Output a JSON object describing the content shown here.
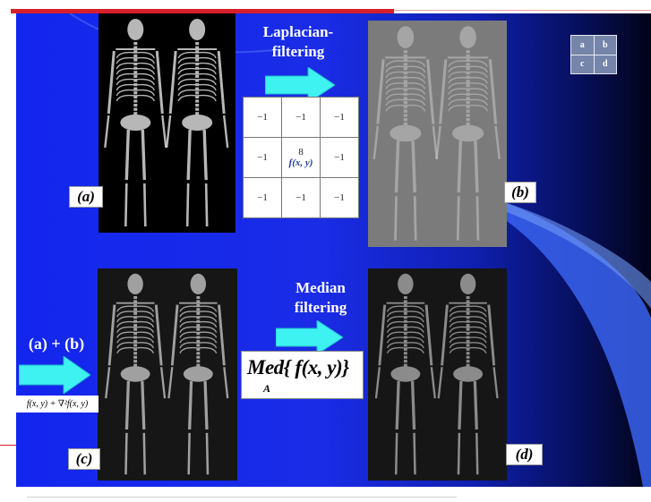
{
  "panels": {
    "a_label": "(a)",
    "b_label": "(b)",
    "c_label": "(c)",
    "d_label": "(d)"
  },
  "captions": {
    "laplacian": "Laplacian-\nfiltering",
    "median": "Median\nfiltering",
    "sum": "(a) + (b)"
  },
  "mask": {
    "cells": [
      "−1",
      "−1",
      "−1",
      "−1",
      "8",
      "−1",
      "−1",
      "−1",
      "−1"
    ],
    "center_label": "f(x, y)"
  },
  "formulas": {
    "laplacian_sum": "f(x, y) + ∇²f(x, y)",
    "median_main": "Med{ f(x, y)}",
    "median_sub": "A"
  },
  "legend": {
    "cells": [
      "a",
      "b",
      "c",
      "d"
    ]
  },
  "colors": {
    "slide_blue": "#1326ee",
    "arrow_cyan": "#3ef2f2",
    "accent_red": "#d61f2a"
  }
}
